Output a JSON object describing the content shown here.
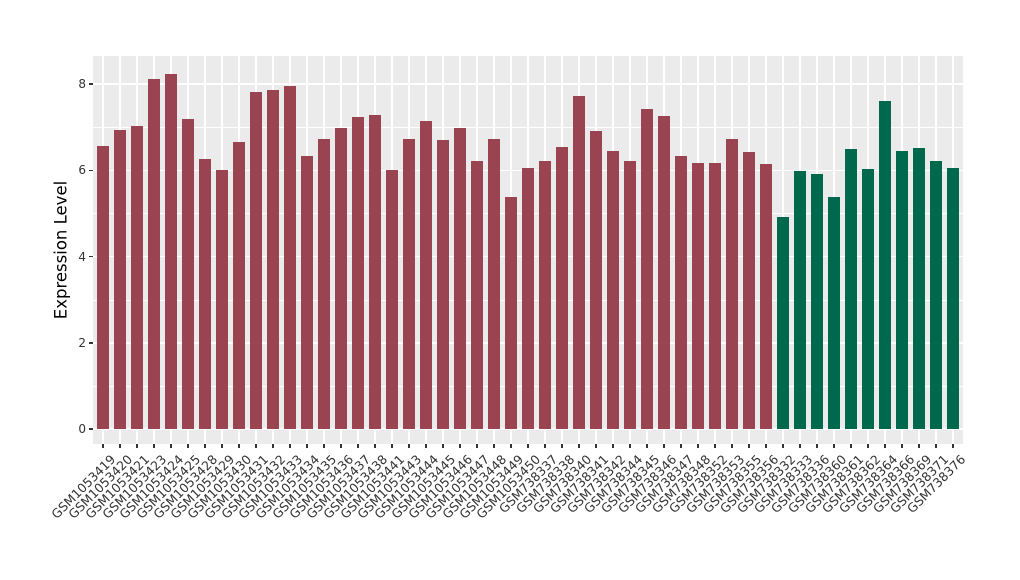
{
  "chart": {
    "title": "",
    "y_axis_title": "Expression Level"
  },
  "chart_data": {
    "type": "bar",
    "title": "",
    "xlabel": "",
    "ylabel": "Expression Level",
    "ylim": [
      0,
      8.65
    ],
    "yticks": [
      0,
      2,
      4,
      6,
      8
    ],
    "yticks_minor": [
      1,
      3,
      5,
      7
    ],
    "grid": "on",
    "legend": "none",
    "panel_background": "#EBEBEB",
    "grid_color": "#FFFFFF",
    "axis_text_color": "#333333",
    "groups": [
      {
        "name": "group-1",
        "color": "#9A4351",
        "start": 0,
        "count": 40
      },
      {
        "name": "group-2",
        "color": "#00694D",
        "start": 40,
        "count": 11
      }
    ],
    "categories": [
      "GSM1053419",
      "GSM1053420",
      "GSM1053421",
      "GSM1053423",
      "GSM1053424",
      "GSM1053425",
      "GSM1053428",
      "GSM1053429",
      "GSM1053430",
      "GSM1053431",
      "GSM1053432",
      "GSM1053433",
      "GSM1053434",
      "GSM1053435",
      "GSM1053436",
      "GSM1053437",
      "GSM1053438",
      "GSM1053441",
      "GSM1053443",
      "GSM1053444",
      "GSM1053445",
      "GSM1053446",
      "GSM1053447",
      "GSM1053448",
      "GSM1053449",
      "GSM1053450",
      "GSM738337",
      "GSM738338",
      "GSM738340",
      "GSM738341",
      "GSM738342",
      "GSM738344",
      "GSM738345",
      "GSM738346",
      "GSM738347",
      "GSM738348",
      "GSM738352",
      "GSM738353",
      "GSM738355",
      "GSM738356",
      "GSM738332",
      "GSM738333",
      "GSM738336",
      "GSM738360",
      "GSM738361",
      "GSM738362",
      "GSM738364",
      "GSM738366",
      "GSM738369",
      "GSM738371",
      "GSM738376"
    ],
    "values": [
      6.57,
      6.94,
      7.03,
      8.12,
      8.24,
      7.19,
      6.26,
      6.01,
      6.66,
      7.82,
      7.87,
      7.96,
      6.33,
      6.72,
      6.98,
      7.24,
      7.29,
      6.01,
      6.73,
      7.15,
      6.69,
      6.98,
      6.21,
      6.73,
      5.38,
      6.05,
      6.22,
      6.55,
      7.73,
      6.91,
      6.45,
      6.22,
      7.42,
      7.26,
      6.33,
      6.17,
      6.17,
      6.73,
      6.42,
      6.15,
      4.92,
      5.99,
      5.92,
      5.38,
      6.5,
      6.03,
      7.61,
      6.45,
      6.52,
      6.22,
      6.05
    ]
  }
}
